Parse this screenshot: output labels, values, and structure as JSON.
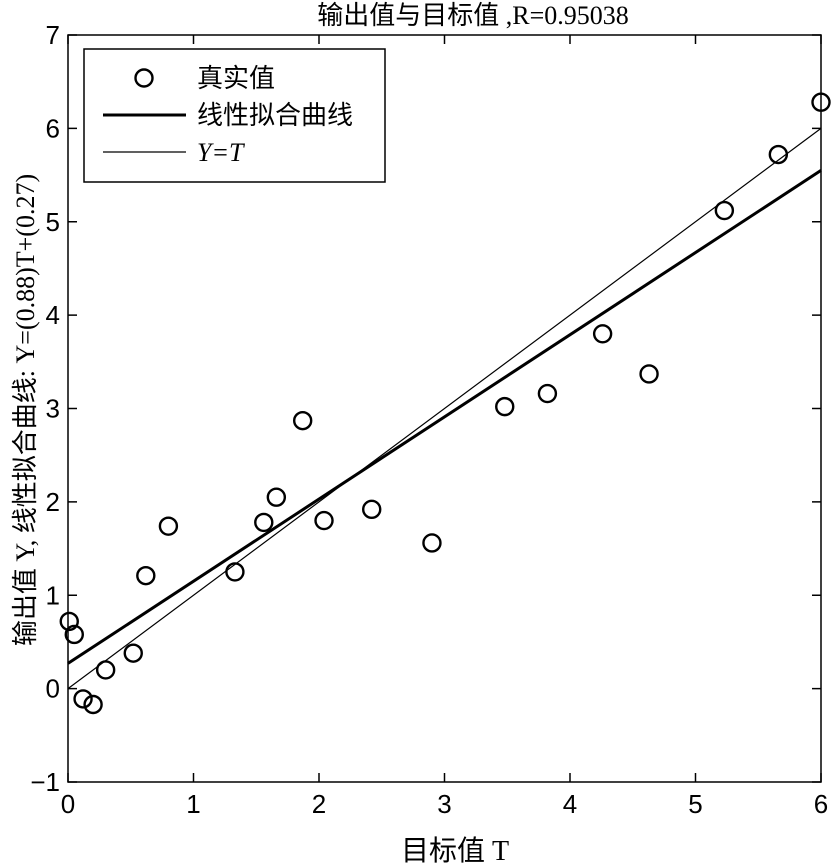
{
  "chart_data": {
    "type": "scatter",
    "title": "输出值与目标值 ,R=0.95038",
    "xlabel": "目标值 T",
    "ylabel": "输出值 Y, 线性拟合曲线: Y=(0.88)T+(0.27)",
    "xlim": [
      0,
      6
    ],
    "ylim": [
      -1,
      7
    ],
    "x_ticks": [
      0,
      1,
      2,
      3,
      4,
      5,
      6
    ],
    "y_ticks": [
      -1,
      0,
      1,
      2,
      3,
      4,
      5,
      6,
      7
    ],
    "x_tick_labels": [
      "0",
      "1",
      "2",
      "3",
      "4",
      "5",
      "6"
    ],
    "y_tick_labels": [
      "−1",
      "0",
      "1",
      "2",
      "3",
      "4",
      "5",
      "6",
      "7"
    ],
    "grid": false,
    "legend_position": "top-left",
    "legend": [
      "真实值",
      "线性拟合曲线",
      "Y=T"
    ],
    "series": [
      {
        "name": "真实值",
        "kind": "markers",
        "points": [
          [
            0.01,
            0.72
          ],
          [
            0.05,
            0.58
          ],
          [
            0.12,
            -0.11
          ],
          [
            0.2,
            -0.17
          ],
          [
            0.3,
            0.2
          ],
          [
            0.52,
            0.38
          ],
          [
            0.62,
            1.21
          ],
          [
            0.8,
            1.74
          ],
          [
            1.33,
            1.25
          ],
          [
            1.56,
            1.78
          ],
          [
            1.66,
            2.05
          ],
          [
            1.87,
            2.87
          ],
          [
            2.04,
            1.8
          ],
          [
            2.42,
            1.92
          ],
          [
            2.9,
            1.56
          ],
          [
            3.48,
            3.02
          ],
          [
            3.82,
            3.16
          ],
          [
            4.26,
            3.8
          ],
          [
            4.63,
            3.37
          ],
          [
            5.23,
            5.12
          ],
          [
            5.66,
            5.72
          ],
          [
            6.0,
            6.28
          ]
        ]
      },
      {
        "name": "线性拟合曲线",
        "kind": "line",
        "slope": 0.88,
        "intercept": 0.27
      },
      {
        "name": "Y=T",
        "kind": "line",
        "slope": 1,
        "intercept": 0
      }
    ]
  }
}
